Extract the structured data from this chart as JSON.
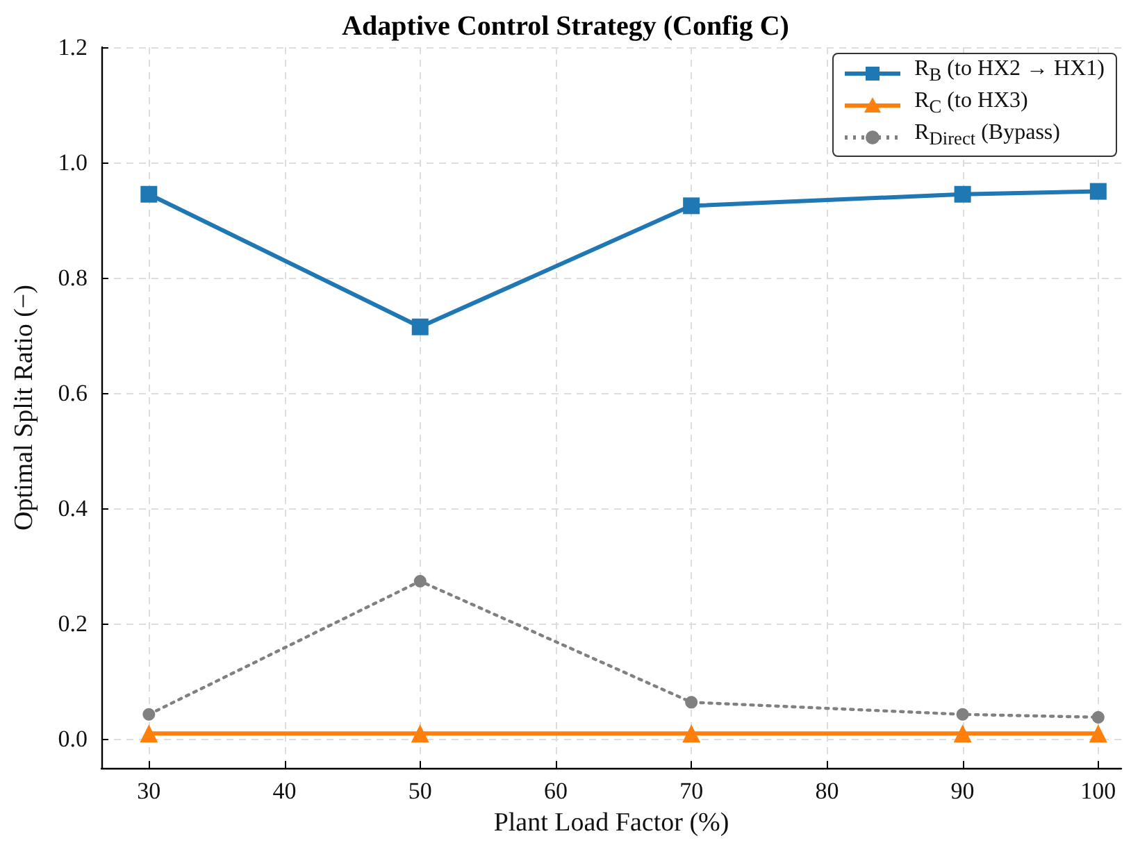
{
  "chart_data": {
    "type": "line",
    "title": "Adaptive Control Strategy (Config C)",
    "xlabel": "Plant Load Factor (%)",
    "ylabel": "Optimal Split Ratio (−)",
    "x": [
      30,
      50,
      70,
      90,
      100
    ],
    "series": [
      {
        "name": "R$_{B}$ (to HX2 → HX1)",
        "color": "#1f77b4",
        "values": [
          0.945,
          0.715,
          0.925,
          0.945,
          0.95
        ],
        "marker": "square",
        "line_style": "solid"
      },
      {
        "name": "R$_{C}$ (to HX3)",
        "color": "#ff7f0e",
        "values": [
          0.01,
          0.01,
          0.01,
          0.01,
          0.01
        ],
        "marker": "triangle",
        "line_style": "solid"
      },
      {
        "name": "R$_{Direct}$ (Bypass)",
        "color": "#808080",
        "values": [
          0.043,
          0.274,
          0.064,
          0.043,
          0.038
        ],
        "marker": "circle",
        "line_style": "dotted"
      }
    ],
    "xlim": [
      26.5,
      101.7
    ],
    "xticks": [
      30,
      40,
      50,
      60,
      70,
      80,
      90,
      100
    ],
    "ylim": [
      -0.05,
      1.2
    ],
    "yticks": [
      {
        "value": 0,
        "label": "0.0"
      },
      {
        "value": 0.2,
        "label": "0.2"
      },
      {
        "value": 0.4,
        "label": "0.4"
      },
      {
        "value": 0.6,
        "label": "0.6"
      },
      {
        "value": 0.8,
        "label": "0.8"
      },
      {
        "value": 1,
        "label": "1.0"
      },
      {
        "value": 1.2,
        "label": "1.2"
      }
    ],
    "grid": true,
    "legend": "top right"
  }
}
